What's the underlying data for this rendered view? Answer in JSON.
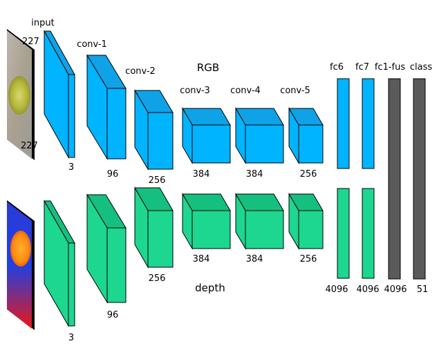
{
  "header": {
    "input": "input",
    "input_size_top": "227",
    "input_size_bottom": "227",
    "conv1": "conv-1",
    "conv2": "conv-2",
    "conv3": "conv-3",
    "conv4": "conv-4",
    "conv5": "conv-5",
    "fc6": "fc6",
    "fc7": "fc7",
    "fc1fus": "fc1-fus",
    "class": "class"
  },
  "rgb": {
    "title": "RGB",
    "input_channels": "3",
    "conv1_channels": "96",
    "conv2_channels": "256",
    "conv3_channels": "384",
    "conv4_channels": "384",
    "conv5_channels": "256"
  },
  "depth": {
    "title": "depth",
    "input_channels": "3",
    "conv1_channels": "96",
    "conv2_channels": "256",
    "conv3_channels": "384",
    "conv4_channels": "384",
    "conv5_channels": "256"
  },
  "fc": {
    "fc6_units": "4096",
    "fc7_units": "4096",
    "fc1fus_units": "4096",
    "class_units": "51"
  },
  "colors": {
    "rgb_stream": "#00b4ff",
    "depth_stream": "#1dd68f",
    "fusion": "#5a5a5a",
    "outline": "#000000"
  }
}
